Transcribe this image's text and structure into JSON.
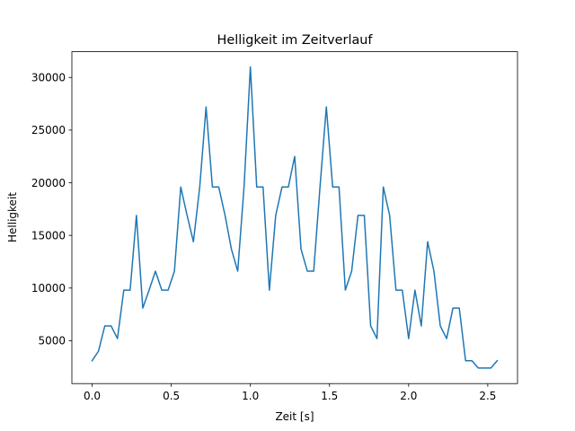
{
  "chart_data": {
    "type": "line",
    "title": "Helligkeit im Zeitverlauf",
    "xlabel": "Zeit [s]",
    "ylabel": "Helligkeit",
    "xlim": [
      -0.128,
      2.688
    ],
    "ylim": [
      925,
      32445
    ],
    "xticks": [
      0.0,
      0.5,
      1.0,
      1.5,
      2.0,
      2.5
    ],
    "xtick_labels": [
      "0.0",
      "0.5",
      "1.0",
      "1.5",
      "2.0",
      "2.5"
    ],
    "yticks": [
      5000,
      10000,
      15000,
      20000,
      25000,
      30000
    ],
    "ytick_labels": [
      "5000",
      "10000",
      "15000",
      "20000",
      "25000",
      "30000"
    ],
    "grid": false,
    "legend": "none",
    "series": [
      {
        "color": "#1f77b4",
        "x": [
          0.0,
          0.04,
          0.08,
          0.12,
          0.16,
          0.2,
          0.24,
          0.28,
          0.32,
          0.36,
          0.4,
          0.44,
          0.48,
          0.52,
          0.56,
          0.6,
          0.64,
          0.68,
          0.72,
          0.76,
          0.8,
          0.84,
          0.88,
          0.92,
          0.96,
          1.0,
          1.04,
          1.08,
          1.12,
          1.16,
          1.2,
          1.24,
          1.28,
          1.32,
          1.36,
          1.4,
          1.44,
          1.48,
          1.52,
          1.56,
          1.6,
          1.64,
          1.68,
          1.72,
          1.76,
          1.8,
          1.84,
          1.88,
          1.92,
          1.96,
          2.0,
          2.04,
          2.08,
          2.12,
          2.16,
          2.2,
          2.24,
          2.28,
          2.32,
          2.36,
          2.4,
          2.44,
          2.48,
          2.52,
          2.56
        ],
        "y": [
          3100,
          4000,
          6400,
          6400,
          5200,
          9800,
          9800,
          16900,
          8100,
          9800,
          11600,
          9800,
          9800,
          11600,
          19600,
          16900,
          14400,
          19600,
          27200,
          19600,
          19600,
          16900,
          13700,
          11600,
          19600,
          31000,
          19600,
          19600,
          9800,
          16900,
          19600,
          19600,
          22500,
          13700,
          11600,
          11600,
          19600,
          27200,
          19600,
          19600,
          9800,
          11600,
          16900,
          16900,
          6400,
          5200,
          19600,
          16900,
          9800,
          9800,
          5200,
          9800,
          6400,
          14400,
          11600,
          6400,
          5200,
          8100,
          8100,
          3100,
          3100,
          2400,
          2400,
          2400,
          3100
        ]
      }
    ]
  }
}
